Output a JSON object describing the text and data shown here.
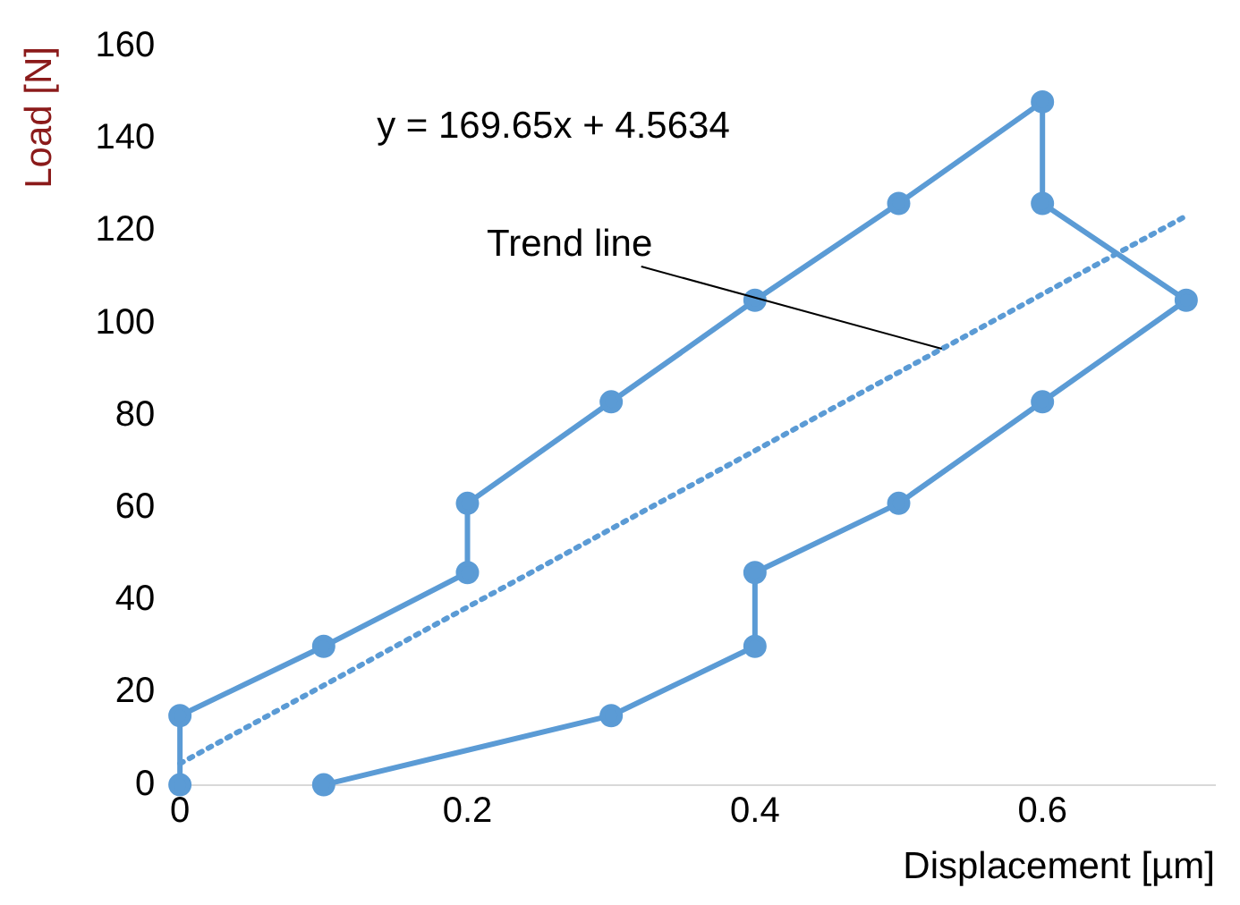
{
  "chart_data": {
    "type": "scatter",
    "xlabel": "Displacement [µm]",
    "ylabel": "Load [N]",
    "xlim": [
      0,
      0.72
    ],
    "xticks": [
      0,
      0.2,
      0.4,
      0.6
    ],
    "ylim": [
      0,
      160
    ],
    "yticks": [
      0,
      20,
      40,
      60,
      80,
      100,
      120,
      140,
      160
    ],
    "grid": false,
    "legend": false,
    "series": [
      {
        "type": "line",
        "color": "#5b9bd5",
        "marker": "circle",
        "line_style": "solid",
        "x": [
          0,
          0,
          0.1,
          0.2,
          0.2,
          0.3,
          0.4,
          0.5,
          0.6,
          0.6,
          0.7,
          0.6,
          0.5,
          0.4,
          0.4,
          0.3,
          0.1
        ],
        "values": [
          0,
          15,
          30,
          46,
          61,
          83,
          105,
          126,
          148,
          126,
          105,
          83,
          61,
          46,
          30,
          15,
          0
        ]
      },
      {
        "type": "line",
        "color": "#5b9bd5",
        "marker": "none",
        "line_style": "dotted",
        "x": [
          0,
          0.7
        ],
        "values": [
          4.6,
          123.3
        ]
      }
    ],
    "annotations": [
      "y = 169.65x + 4.5634",
      {
        "text": "Trend line",
        "x": 0.53,
        "y": 94.5
      }
    ]
  }
}
